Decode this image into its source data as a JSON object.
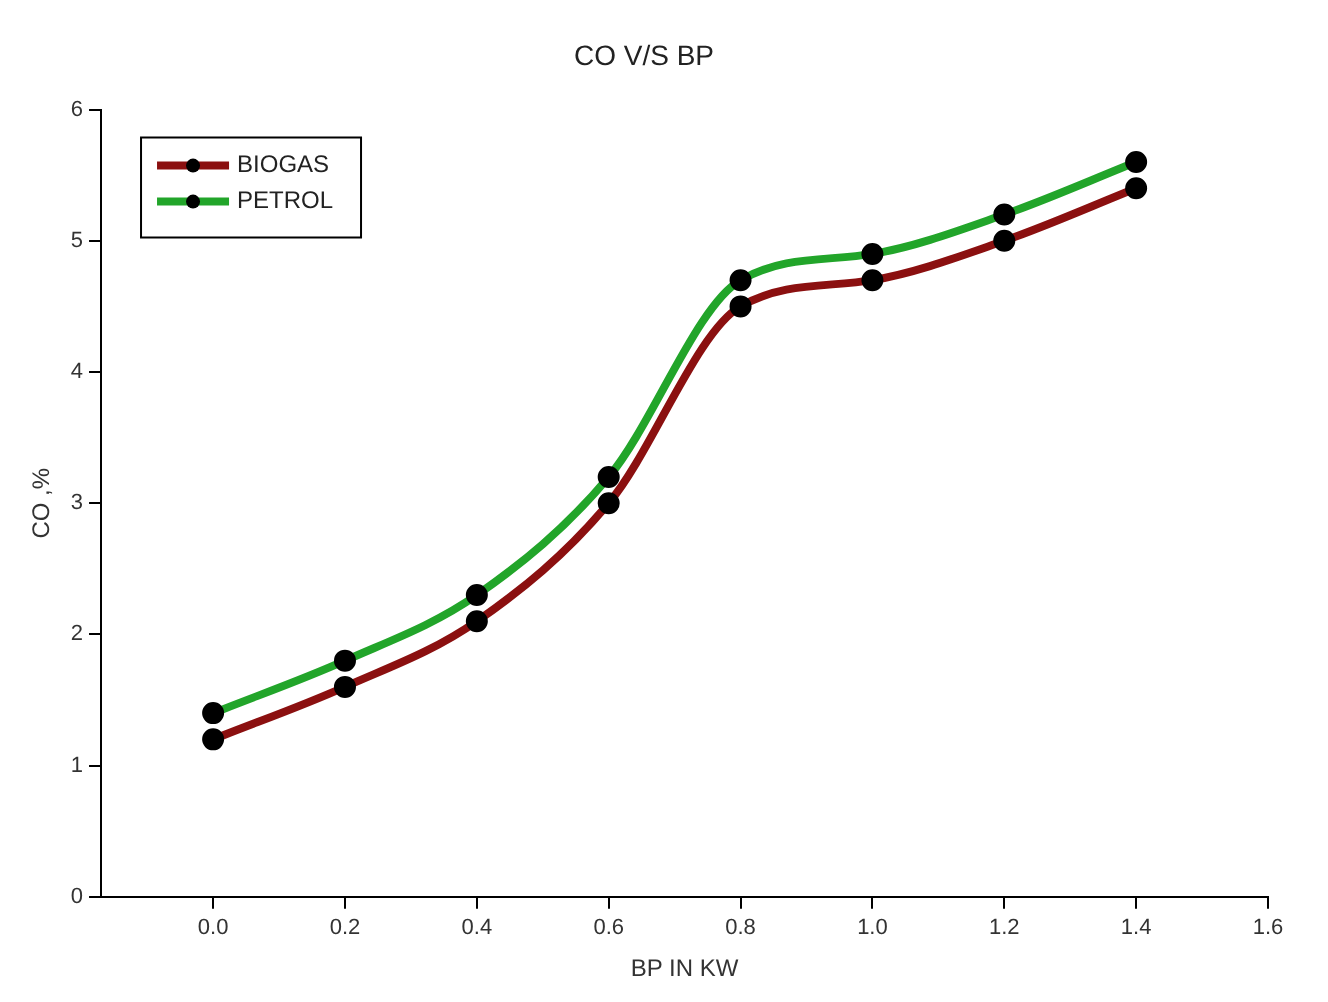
{
  "chart_data": {
    "type": "line",
    "title": "CO V/S BP",
    "xlabel": "BP IN KW",
    "ylabel": "CO ,%",
    "x": [
      0,
      0.2,
      0.4,
      0.6,
      0.8,
      1.0,
      1.2,
      1.4
    ],
    "series": [
      {
        "name": "BIOGAS",
        "color": "#8b1010",
        "values": [
          1.2,
          1.6,
          2.1,
          3.0,
          4.5,
          4.7,
          5.0,
          5.4
        ]
      },
      {
        "name": "PETROL",
        "color": "#22a52a",
        "values": [
          1.4,
          1.8,
          2.3,
          3.2,
          4.7,
          4.9,
          5.2,
          5.6
        ]
      }
    ],
    "xlim": [
      -0.17,
      1.6
    ],
    "xticks": [
      {
        "value": 0,
        "label": "0.0"
      },
      {
        "value": 0.2,
        "label": "0.2"
      },
      {
        "value": 0.4,
        "label": "0.4"
      },
      {
        "value": 0.6,
        "label": "0.6"
      },
      {
        "value": 0.8,
        "label": "0.8"
      },
      {
        "value": 1,
        "label": "1.0"
      },
      {
        "value": 1.2,
        "label": "1.2"
      },
      {
        "value": 1.4,
        "label": "1.4"
      },
      {
        "value": 1.6,
        "label": "1.6"
      }
    ],
    "ylim": [
      0,
      6
    ],
    "yticks": [
      0,
      1,
      2,
      3,
      4,
      5,
      6
    ],
    "grid": false,
    "legend": "top left",
    "marker": "circle",
    "line_style": "solid"
  }
}
